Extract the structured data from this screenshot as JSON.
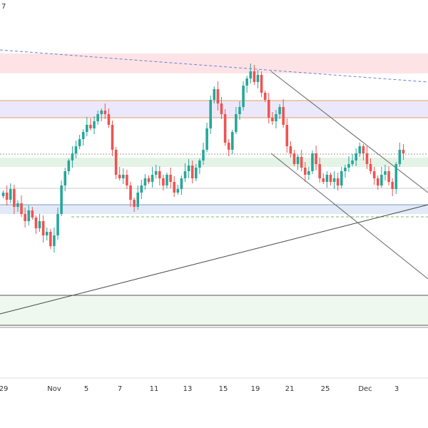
{
  "corner_text": "7",
  "x_axis": {
    "labels": [
      "29",
      "Nov",
      "5",
      "7",
      "11",
      "13",
      "15",
      "19",
      "21",
      "25",
      "Dec",
      "3"
    ]
  }
}
